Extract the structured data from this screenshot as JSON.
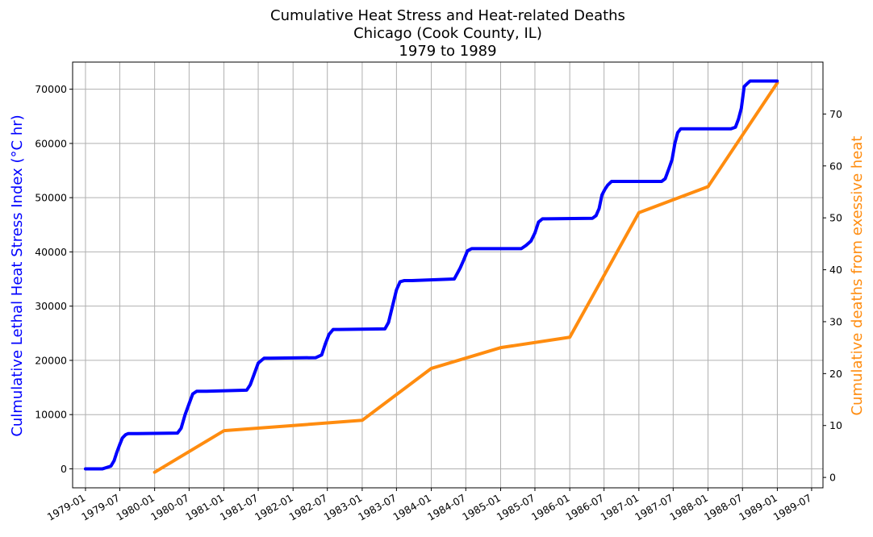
{
  "chart_data": {
    "type": "line",
    "title_lines": [
      "Cumulative Heat Stress and Heat-related Deaths",
      "Chicago (Cook County, IL)",
      "1979 to 1989"
    ],
    "ylabel_left": "Culmulative Lethal Heat Stress Index (°C hr)",
    "ylabel_right": "Cumulative deaths from exessive heat",
    "colors": {
      "left_series": "#0000ff",
      "right_series": "#ff8c0f",
      "grid": "#b0b0b0"
    },
    "grid": true,
    "x_ticks": [
      "1979-01",
      "1979-07",
      "1980-01",
      "1980-07",
      "1981-01",
      "1981-07",
      "1982-01",
      "1982-07",
      "1983-01",
      "1983-07",
      "1984-01",
      "1984-07",
      "1985-01",
      "1985-07",
      "1986-01",
      "1986-07",
      "1987-01",
      "1987-07",
      "1988-01",
      "1988-07",
      "1989-01",
      "1989-07"
    ],
    "x_range": [
      "1978-10-25",
      "1989-08-30"
    ],
    "y_left": {
      "range": [
        -3500,
        75000
      ],
      "ticks": [
        0,
        10000,
        20000,
        30000,
        40000,
        50000,
        60000,
        70000
      ]
    },
    "y_right": {
      "range": [
        -2,
        80
      ],
      "ticks": [
        0,
        10,
        20,
        30,
        40,
        50,
        60,
        70
      ]
    },
    "series": [
      {
        "axis": "left",
        "x": [
          "1979-01-01",
          "1979-04-01",
          "1979-05-15",
          "1979-06-01",
          "1979-06-15",
          "1979-07-01",
          "1979-07-15",
          "1979-08-01",
          "1979-08-15",
          "1979-09-01",
          "1979-10-01",
          "1980-05-01",
          "1980-05-20",
          "1980-06-10",
          "1980-07-01",
          "1980-07-20",
          "1980-08-10",
          "1980-09-01",
          "1980-10-01",
          "1981-05-01",
          "1981-05-20",
          "1981-06-10",
          "1981-07-01",
          "1981-08-01",
          "1981-09-01",
          "1982-05-01",
          "1982-06-01",
          "1982-06-20",
          "1982-07-10",
          "1982-08-01",
          "1982-09-01",
          "1983-05-01",
          "1983-05-20",
          "1983-06-10",
          "1983-07-01",
          "1983-07-20",
          "1983-08-10",
          "1983-09-01",
          "1983-09-20",
          "1984-05-01",
          "1984-06-01",
          "1984-06-20",
          "1984-07-10",
          "1984-08-01",
          "1984-09-01",
          "1985-04-20",
          "1985-05-15",
          "1985-06-10",
          "1985-07-01",
          "1985-07-20",
          "1985-08-10",
          "1985-09-01",
          "1986-05-01",
          "1986-05-20",
          "1986-06-05",
          "1986-06-20",
          "1986-07-05",
          "1986-07-20",
          "1986-08-10",
          "1986-09-01",
          "1987-05-01",
          "1987-05-20",
          "1987-06-10",
          "1987-06-25",
          "1987-07-10",
          "1987-07-25",
          "1987-08-10",
          "1987-09-01",
          "1988-05-01",
          "1988-05-25",
          "1988-06-10",
          "1988-06-25",
          "1988-07-10",
          "1988-07-25",
          "1988-08-10",
          "1988-09-01",
          "1988-10-01",
          "1988-12-31"
        ],
        "y": [
          0,
          0,
          500,
          1500,
          3000,
          4500,
          5700,
          6300,
          6500,
          6500,
          6500,
          6600,
          7500,
          10000,
          12000,
          13800,
          14300,
          14300,
          14300,
          14500,
          15500,
          17500,
          19500,
          20400,
          20400,
          20500,
          21000,
          23000,
          24800,
          25700,
          25700,
          25800,
          27000,
          30000,
          33000,
          34500,
          34700,
          34700,
          34700,
          35000,
          37000,
          38500,
          40200,
          40600,
          40600,
          40600,
          41200,
          42000,
          43500,
          45500,
          46100,
          46100,
          46200,
          46700,
          48000,
          50500,
          51500,
          52300,
          53000,
          53000,
          53000,
          53500,
          55500,
          57000,
          60000,
          62000,
          62700,
          62700,
          62700,
          63000,
          64500,
          66500,
          70500,
          71000,
          71500,
          71500,
          71500,
          71500
        ]
      },
      {
        "axis": "right",
        "x": [
          "1980-01-01",
          "1981-01-01",
          "1983-01-01",
          "1984-01-01",
          "1985-01-01",
          "1986-01-01",
          "1987-01-01",
          "1988-01-01",
          "1989-01-01"
        ],
        "y": [
          1,
          9,
          11,
          21,
          25,
          27,
          51,
          56,
          76
        ]
      }
    ]
  }
}
